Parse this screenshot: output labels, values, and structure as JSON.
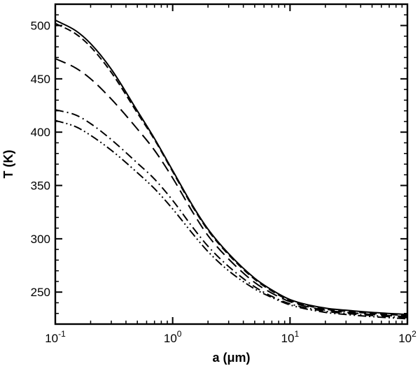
{
  "chart_data": {
    "type": "line",
    "title": "",
    "xlabel": "a (μm)",
    "ylabel": "T (K)",
    "xscale": "log",
    "xlim": [
      0.1,
      100
    ],
    "ylim": [
      220,
      520
    ],
    "grid": false,
    "legend": "none",
    "x_ticks": [
      {
        "value": 0.1,
        "base": "10",
        "exp": "-1"
      },
      {
        "value": 1,
        "base": "10",
        "exp": "0"
      },
      {
        "value": 10,
        "base": "10",
        "exp": "1"
      },
      {
        "value": 100,
        "base": "10",
        "exp": "2"
      }
    ],
    "y_ticks": [
      250,
      300,
      350,
      400,
      450,
      500
    ],
    "series": [
      {
        "style": "solid",
        "x": [
          0.1,
          0.15,
          0.2,
          0.3,
          0.5,
          0.7,
          1,
          1.5,
          2,
          3,
          5,
          7,
          10,
          20,
          30,
          50,
          100
        ],
        "y": [
          505,
          495,
          483,
          459,
          420,
          394,
          364,
          330,
          309,
          286,
          263,
          252,
          243,
          235,
          233,
          231,
          229
        ]
      },
      {
        "style": "dash",
        "x": [
          0.1,
          0.15,
          0.2,
          0.3,
          0.5,
          0.7,
          1,
          1.5,
          2,
          3,
          5,
          7,
          10,
          20,
          30,
          50,
          100
        ],
        "y": [
          502,
          492,
          480,
          456,
          418,
          393,
          363,
          329,
          308,
          285,
          262,
          251,
          242,
          234,
          232,
          230,
          228
        ]
      },
      {
        "style": "long-dash",
        "x": [
          0.1,
          0.15,
          0.2,
          0.3,
          0.5,
          0.7,
          1,
          1.5,
          2,
          3,
          5,
          7,
          10,
          20,
          30,
          50,
          100
        ],
        "y": [
          469,
          460,
          450,
          431,
          403,
          383,
          357,
          324,
          303,
          281,
          259,
          249,
          241,
          233,
          231,
          229,
          227
        ]
      },
      {
        "style": "dash-dot",
        "x": [
          0.1,
          0.15,
          0.2,
          0.3,
          0.5,
          0.7,
          1,
          1.5,
          2,
          3,
          5,
          7,
          10,
          20,
          30,
          50,
          100
        ],
        "y": [
          421,
          416,
          408,
          393,
          371,
          356,
          336,
          310,
          293,
          274,
          255,
          246,
          239,
          232,
          230,
          228,
          226
        ]
      },
      {
        "style": "dash-dot-dot",
        "x": [
          0.1,
          0.15,
          0.2,
          0.3,
          0.5,
          0.7,
          1,
          1.5,
          2,
          3,
          5,
          7,
          10,
          20,
          30,
          50,
          100
        ],
        "y": [
          411,
          405,
          397,
          383,
          362,
          347,
          328,
          304,
          288,
          270,
          253,
          245,
          238,
          231,
          229,
          227,
          225
        ]
      }
    ]
  }
}
